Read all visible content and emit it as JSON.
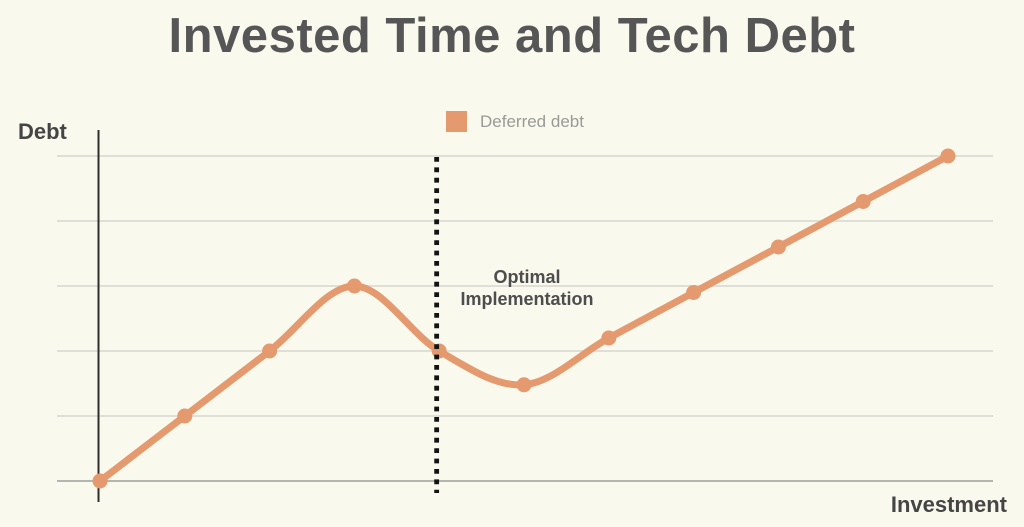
{
  "colors": {
    "background": "#FAF9EE",
    "title_text": "#565656",
    "axis_label_text": "#454545",
    "legend_text": "#9A9A96",
    "annotation_text": "#4D4D4D",
    "line": "#E49A6E",
    "gridline": "#DFDFD7",
    "baseline_gridline": "#B5B5AF",
    "axis_line": "#2F2F2F",
    "dotted_line": "#131313"
  },
  "chart_data": {
    "type": "line",
    "title": "Invested Time and Tech Debt",
    "xlabel": "Investment",
    "ylabel": "Debt",
    "x": [
      0,
      1,
      2,
      3,
      4,
      5,
      6,
      7,
      8,
      9,
      10
    ],
    "series": [
      {
        "name": "Deferred debt",
        "values": [
          0,
          1,
          2,
          3,
          2,
          1.48,
          2.2,
          2.9,
          3.6,
          4.3,
          5
        ]
      }
    ],
    "ylim": [
      0,
      5
    ],
    "grid": "horizontal gridlines at integer y values, no tick labels",
    "legend_position": "top-center",
    "smooth": true,
    "markers": true,
    "annotations": [
      {
        "type": "vertical-dotted-line",
        "x": 3.97,
        "label": "Optimal Implementation"
      }
    ]
  }
}
